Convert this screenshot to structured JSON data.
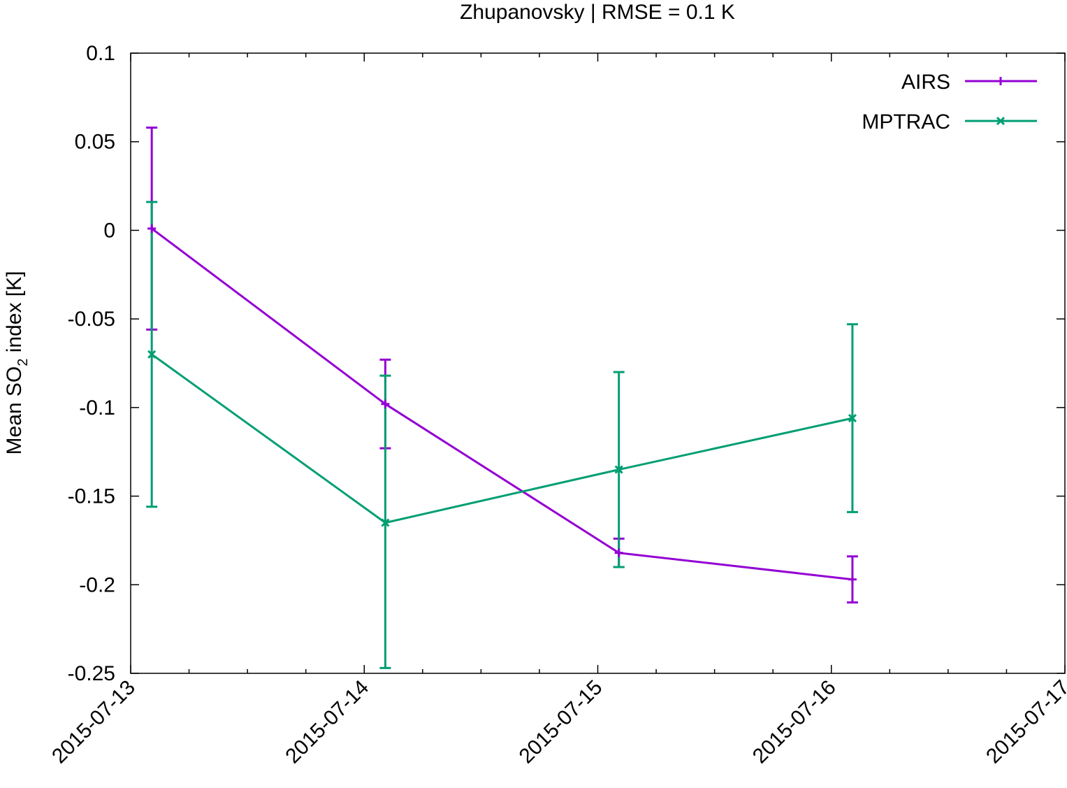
{
  "chart_data": {
    "type": "line",
    "title": "Zhupanovsky | RMSE = 0.1 K",
    "xlabel": "",
    "ylabel": {
      "prefix": "Mean SO",
      "subscript": "2",
      "suffix": " index [K]"
    },
    "xlim": [
      "2015-07-13",
      "2015-07-17"
    ],
    "ylim": [
      -0.25,
      0.1
    ],
    "x_ticks": [
      "2015-07-13",
      "2015-07-14",
      "2015-07-15",
      "2015-07-16",
      "2015-07-17"
    ],
    "y_ticks": [
      0.1,
      0.05,
      0,
      -0.05,
      -0.1,
      -0.15,
      -0.2,
      -0.25
    ],
    "y_tick_labels": [
      "0.1",
      "0.05",
      "0",
      "-0.05",
      "-0.1",
      "-0.15",
      "-0.2",
      "-0.25"
    ],
    "legend_position": "top-right",
    "error_bars": true,
    "series": [
      {
        "name": "AIRS",
        "color": "#9400d3",
        "marker": "plus",
        "x": [
          "2015-07-13 02:10",
          "2015-07-14 02:10",
          "2015-07-15 02:10",
          "2015-07-16 02:10"
        ],
        "y": [
          0.001,
          -0.098,
          -0.182,
          -0.197
        ],
        "y_err_low": [
          -0.056,
          -0.123,
          -0.19,
          -0.21
        ],
        "y_err_high": [
          0.058,
          -0.073,
          -0.174,
          -0.184
        ]
      },
      {
        "name": "MPTRAC",
        "color": "#009e73",
        "marker": "x",
        "x": [
          "2015-07-13 02:10",
          "2015-07-14 02:10",
          "2015-07-15 02:10",
          "2015-07-16 02:10"
        ],
        "y": [
          -0.07,
          -0.165,
          -0.135,
          -0.106
        ],
        "y_err_low": [
          -0.156,
          -0.247,
          -0.19,
          -0.159
        ],
        "y_err_high": [
          0.016,
          -0.082,
          -0.08,
          -0.053
        ]
      }
    ]
  }
}
